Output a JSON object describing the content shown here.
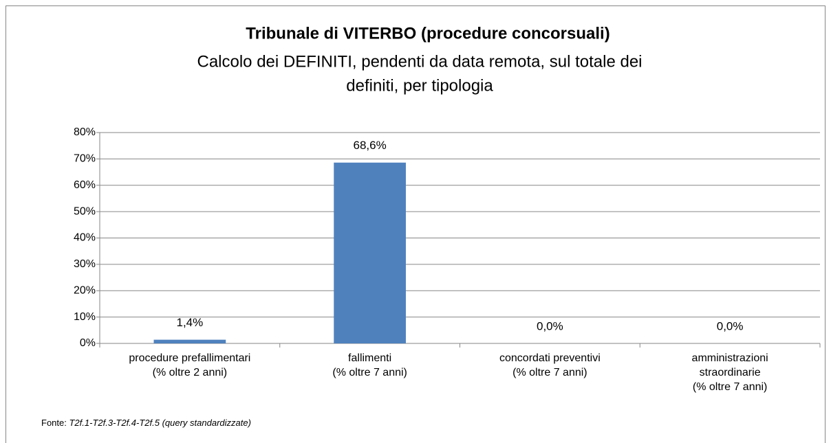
{
  "chart_data": {
    "type": "bar",
    "title": "Tribunale di VITERBO  (procedure concorsuali)",
    "subtitle": [
      "Calcolo dei DEFINITI, pendenti da data remota, sul totale dei",
      "definiti,  per tipologia"
    ],
    "categories": [
      [
        "procedure prefallimentari",
        "(% oltre 2 anni)"
      ],
      [
        "fallimenti",
        "(% oltre 7 anni)"
      ],
      [
        "concordati preventivi",
        "(% oltre 7 anni)"
      ],
      [
        "amministrazioni",
        "straordinarie",
        "(% oltre 7 anni)"
      ]
    ],
    "values": [
      1.4,
      68.6,
      0,
      0
    ],
    "value_labels": [
      "1,4%",
      "68,6%",
      "0,0%",
      "0,0%"
    ],
    "color": "#4f81bd",
    "ylim": [
      0,
      80
    ],
    "yticks": [
      {
        "value": 0,
        "label": "0%"
      },
      {
        "value": 10,
        "label": "10%"
      },
      {
        "value": 20,
        "label": "20%"
      },
      {
        "value": 30,
        "label": "30%"
      },
      {
        "value": 40,
        "label": "40%"
      },
      {
        "value": 50,
        "label": "50%"
      },
      {
        "value": 60,
        "label": "60%"
      },
      {
        "value": 70,
        "label": "70%"
      },
      {
        "value": 80,
        "label": "80%"
      }
    ],
    "grid": true,
    "source": {
      "label": "Fonte:",
      "text": "T2f.1-T2f.3-T2f.4-T2f.5 (query standardizzate)"
    }
  }
}
